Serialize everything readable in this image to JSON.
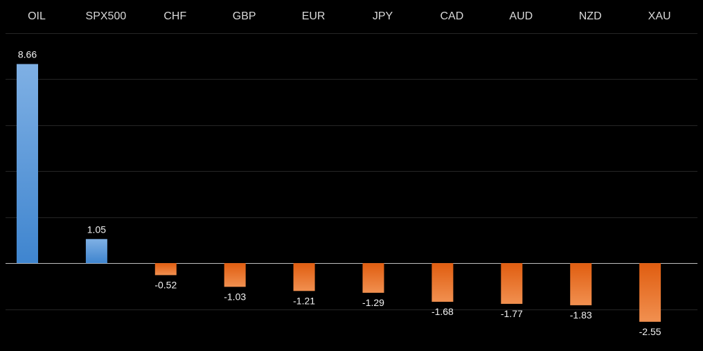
{
  "chart_data": {
    "type": "bar",
    "title": "",
    "xlabel": "",
    "ylabel": "",
    "categories": [
      "OIL",
      "SPX500",
      "CHF",
      "GBP",
      "EUR",
      "JPY",
      "CAD",
      "AUD",
      "NZD",
      "XAU"
    ],
    "values": [
      8.66,
      1.05,
      -0.52,
      -1.03,
      -1.21,
      -1.29,
      -1.68,
      -1.77,
      -1.83,
      -2.55
    ],
    "data_labels": [
      "8.66",
      "1.05",
      "-0.52",
      "-1.03",
      "-1.21",
      "-1.29",
      "-1.68",
      "-1.77",
      "-1.83",
      "-2.55"
    ],
    "ylim": [
      -4,
      10
    ],
    "y_gridline_step": 2,
    "grid": true,
    "category_labels_position": "top",
    "legend": "none",
    "colors": {
      "background": "#000000",
      "positive_top": "#7fb0e4",
      "positive_bottom": "#3f85cf",
      "negative_top": "#e05d10",
      "negative_bottom": "#f19050",
      "gridline": "#262626",
      "zero_line": "#c0c0c0",
      "text": "#d9d9d9"
    }
  }
}
